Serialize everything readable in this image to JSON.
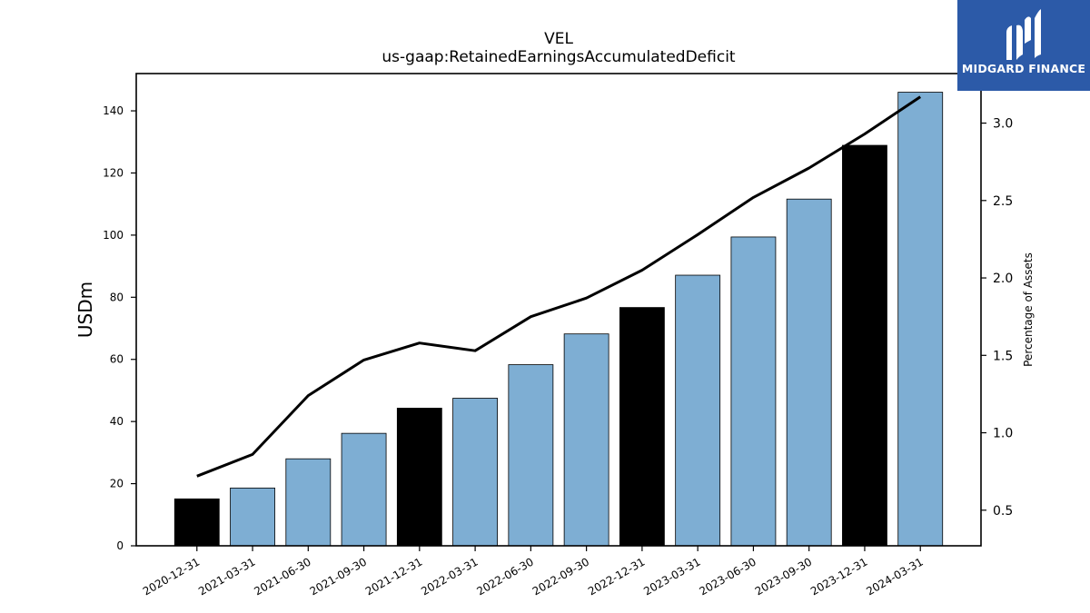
{
  "chart_data": {
    "type": "bar",
    "title": "VEL",
    "subtitle": "us-gaap:RetainedEarningsAccumulatedDeficit",
    "ylabel": "USDm",
    "y2label": "Percentage of Assets",
    "categories": [
      "2020-12-31",
      "2021-03-31",
      "2021-06-30",
      "2021-09-30",
      "2021-12-31",
      "2022-03-31",
      "2022-06-30",
      "2022-09-30",
      "2022-12-31",
      "2023-03-31",
      "2023-06-30",
      "2023-09-30",
      "2023-12-31",
      "2024-03-31"
    ],
    "series": [
      {
        "type": "bar",
        "axis": "left",
        "values": [
          15.1,
          18.6,
          28.0,
          36.2,
          44.3,
          47.5,
          58.3,
          68.2,
          76.7,
          87.1,
          99.4,
          111.6,
          128.9,
          146.0
        ],
        "colors": [
          "#000000",
          "#7eaed3",
          "#7eaed3",
          "#7eaed3",
          "#000000",
          "#7eaed3",
          "#7eaed3",
          "#7eaed3",
          "#000000",
          "#7eaed3",
          "#7eaed3",
          "#7eaed3",
          "#000000",
          "#7eaed3"
        ]
      },
      {
        "type": "line",
        "axis": "right",
        "values": [
          0.72,
          0.86,
          1.24,
          1.47,
          1.58,
          1.53,
          1.75,
          1.87,
          2.05,
          2.28,
          2.52,
          2.71,
          2.93,
          3.17
        ],
        "color": "#000000"
      }
    ],
    "ylim": [
      0,
      152
    ],
    "y2lim": [
      0.27,
      3.32
    ],
    "yticks": [
      "0",
      "20",
      "40",
      "60",
      "80",
      "100",
      "120",
      "140"
    ],
    "y2ticks": [
      "0.5",
      "1.0",
      "1.5",
      "2.0",
      "2.5",
      "3.0"
    ],
    "grid": false,
    "legend": "none"
  },
  "logo": {
    "text": "MIDGARD FINANCE",
    "background": "#2c5aa8",
    "icon": "midgard-logo-icon"
  }
}
